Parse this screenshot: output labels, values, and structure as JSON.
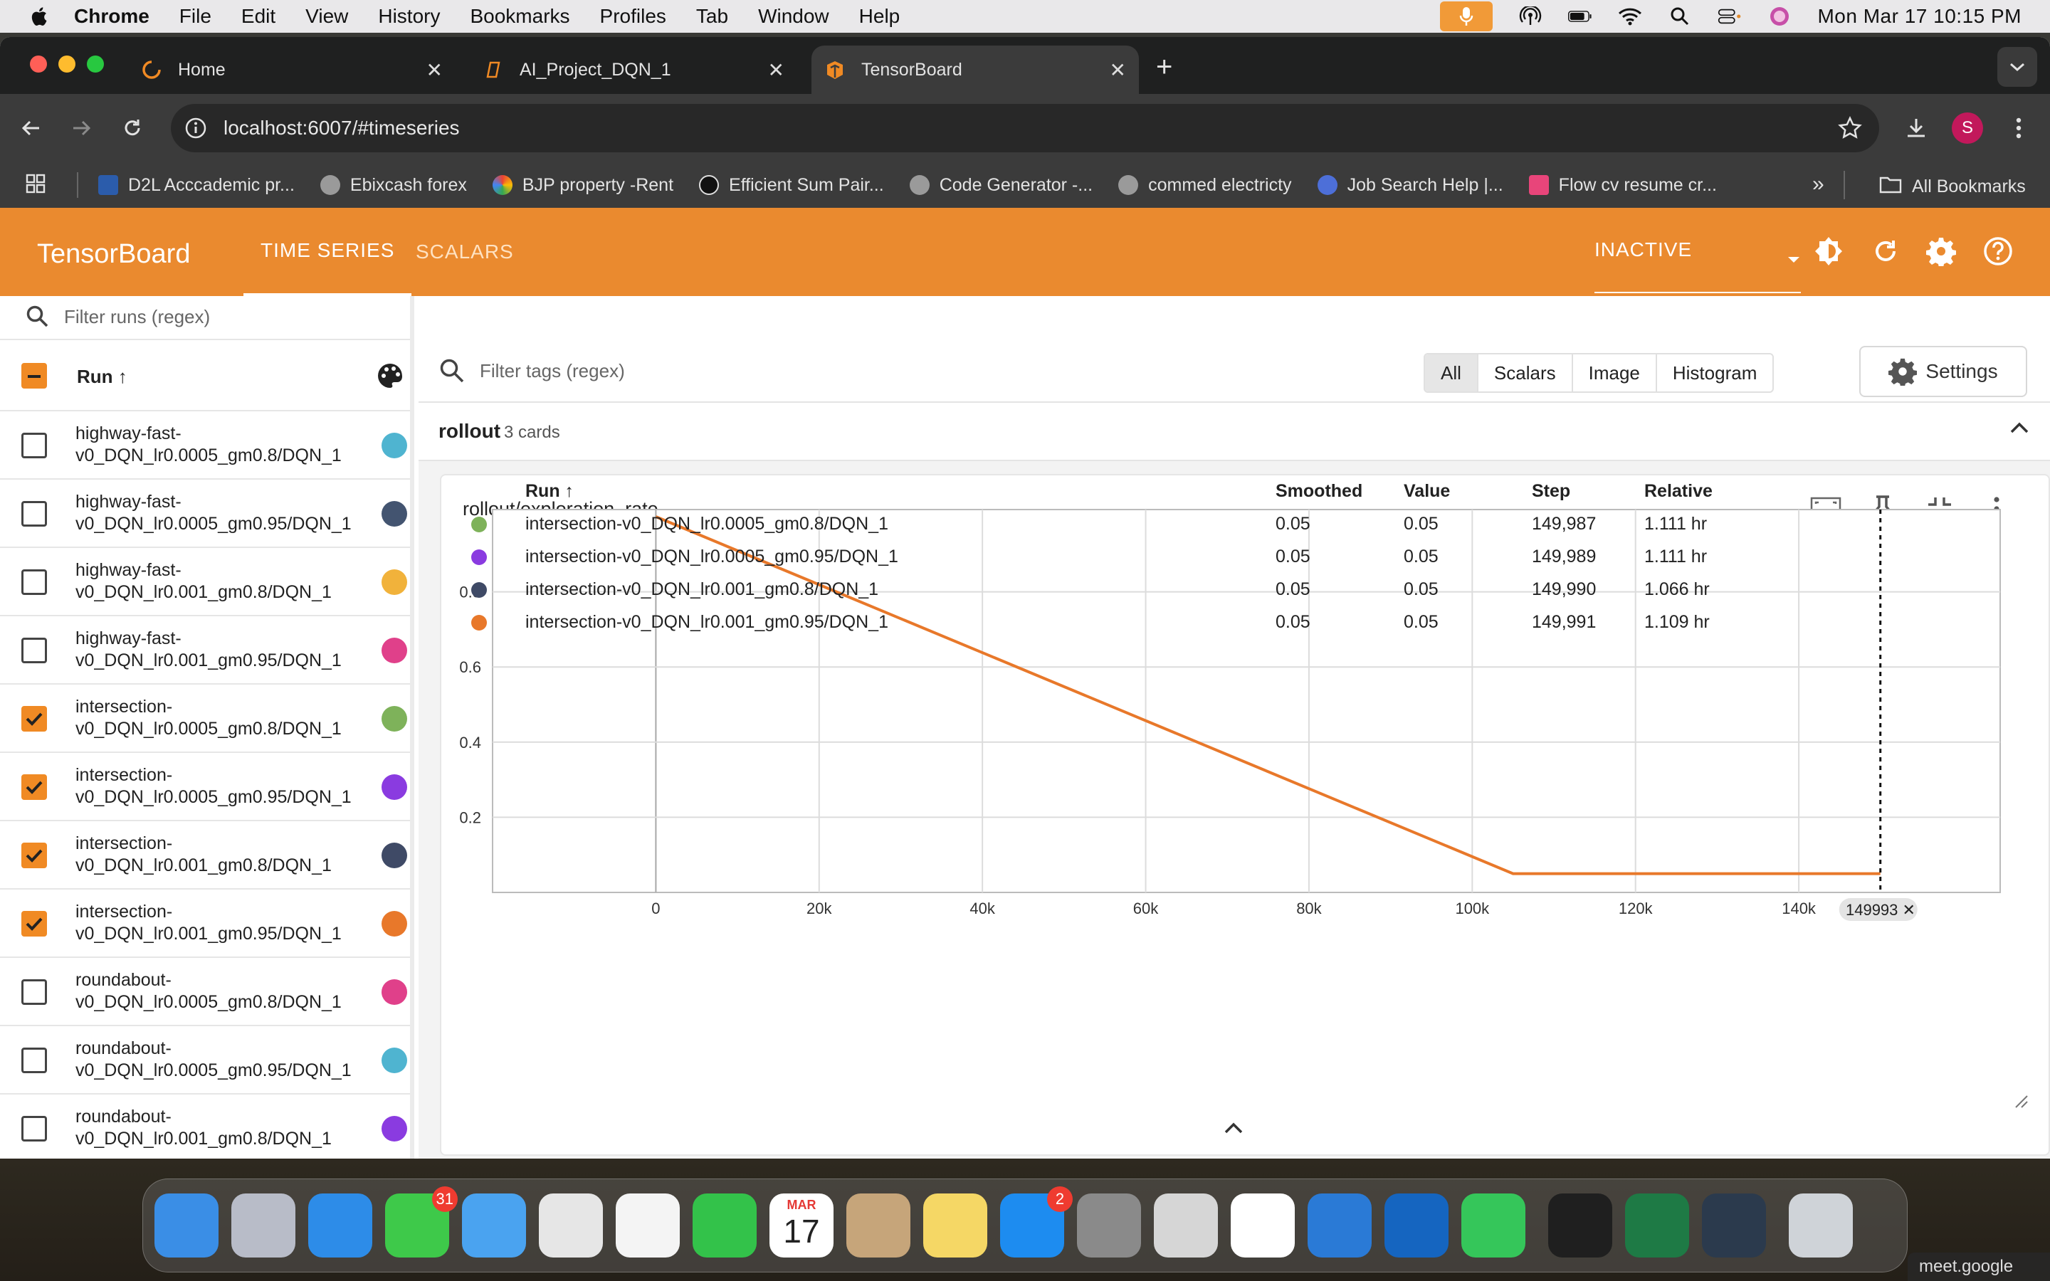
{
  "menubar": {
    "app": "Chrome",
    "items": [
      "File",
      "Edit",
      "View",
      "History",
      "Bookmarks",
      "Profiles",
      "Tab",
      "Window",
      "Help"
    ],
    "clock": "Mon Mar 17  10:15 PM"
  },
  "browser": {
    "tabs": [
      {
        "title": "Home",
        "icon": "home-spinner-icon"
      },
      {
        "title": "AI_Project_DQN_1",
        "icon": "notebook-icon"
      },
      {
        "title": "TensorBoard",
        "icon": "tensorboard-icon"
      }
    ],
    "url": "localhost:6007/#timeseries",
    "profile_initial": "S",
    "bookmarks": [
      "D2L Acccademic pr...",
      "Ebixcash forex",
      "BJP property -Rent",
      "Efficient Sum Pair...",
      "Code Generator -...",
      "commed electricty",
      "Job Search Help |...",
      "Flow cv resume cr..."
    ],
    "all_bookmarks": "All Bookmarks"
  },
  "tensorboard": {
    "logo": "TensorBoard",
    "nav": [
      "TIME SERIES",
      "SCALARS"
    ],
    "status": "INACTIVE"
  },
  "sidebar": {
    "filter_placeholder": "Filter runs (regex)",
    "run_header": "Run ↑",
    "runs": [
      {
        "name": "highway-fast-v0_DQN_lr0.0005_gm0.8/DQN_1",
        "l1": "highway-fast-",
        "l2": "v0_DQN_lr0.0005_gm0.8/DQN_1",
        "checked": false,
        "color": "#4fb4d0"
      },
      {
        "name": "highway-fast-v0_DQN_lr0.0005_gm0.95/DQN_1",
        "l1": "highway-fast-",
        "l2": "v0_DQN_lr0.0005_gm0.95/DQN_1",
        "checked": false,
        "color": "#435470"
      },
      {
        "name": "highway-fast-v0_DQN_lr0.001_gm0.8/DQN_1",
        "l1": "highway-fast-",
        "l2": "v0_DQN_lr0.001_gm0.8/DQN_1",
        "checked": false,
        "color": "#f1b23b"
      },
      {
        "name": "highway-fast-v0_DQN_lr0.001_gm0.95/DQN_1",
        "l1": "highway-fast-",
        "l2": "v0_DQN_lr0.001_gm0.95/DQN_1",
        "checked": false,
        "color": "#e0408a"
      },
      {
        "name": "intersection-v0_DQN_lr0.0005_gm0.8/DQN_1",
        "l1": "intersection-",
        "l2": "v0_DQN_lr0.0005_gm0.8/DQN_1",
        "checked": true,
        "color": "#7eb25a"
      },
      {
        "name": "intersection-v0_DQN_lr0.0005_gm0.95/DQN_1",
        "l1": "intersection-",
        "l2": "v0_DQN_lr0.0005_gm0.95/DQN_1",
        "checked": true,
        "color": "#8a3be0"
      },
      {
        "name": "intersection-v0_DQN_lr0.001_gm0.8/DQN_1",
        "l1": "intersection-",
        "l2": "v0_DQN_lr0.001_gm0.8/DQN_1",
        "checked": true,
        "color": "#3f4a66"
      },
      {
        "name": "intersection-v0_DQN_lr0.001_gm0.95/DQN_1",
        "l1": "intersection-",
        "l2": "v0_DQN_lr0.001_gm0.95/DQN_1",
        "checked": true,
        "color": "#e8782a"
      },
      {
        "name": "roundabout-v0_DQN_lr0.0005_gm0.8/DQN_1",
        "l1": "roundabout-",
        "l2": "v0_DQN_lr0.0005_gm0.8/DQN_1",
        "checked": false,
        "color": "#e0408a"
      },
      {
        "name": "roundabout-v0_DQN_lr0.0005_gm0.95/DQN_1",
        "l1": "roundabout-",
        "l2": "v0_DQN_lr0.0005_gm0.95/DQN_1",
        "checked": false,
        "color": "#4fb4d0"
      },
      {
        "name": "roundabout-v0_DQN_lr0.001_gm0.8/DQN_1",
        "l1": "roundabout-",
        "l2": "v0_DQN_lr0.001_gm0.8/DQN_1",
        "checked": false,
        "color": "#8a3be0"
      }
    ]
  },
  "main": {
    "filter_placeholder": "Filter tags (regex)",
    "type_filters": [
      "All",
      "Scalars",
      "Image",
      "Histogram"
    ],
    "selected_filter": "All",
    "settings_label": "Settings",
    "group": {
      "name": "rollout",
      "count": "3 cards"
    },
    "card_title": "rollout/exploration_rate",
    "step_badge": "149993",
    "table": {
      "headers": [
        "Run ↑",
        "Smoothed",
        "Value",
        "Step",
        "Relative"
      ],
      "rows": [
        {
          "color": "#7eb25a",
          "run": "intersection-v0_DQN_lr0.0005_gm0.8/DQN_1",
          "smoothed": "0.05",
          "value": "0.05",
          "step": "149,987",
          "relative": "1.111 hr"
        },
        {
          "color": "#8a3be0",
          "run": "intersection-v0_DQN_lr0.0005_gm0.95/DQN_1",
          "smoothed": "0.05",
          "value": "0.05",
          "step": "149,989",
          "relative": "1.111 hr"
        },
        {
          "color": "#3f4a66",
          "run": "intersection-v0_DQN_lr0.001_gm0.8/DQN_1",
          "smoothed": "0.05",
          "value": "0.05",
          "step": "149,990",
          "relative": "1.066 hr"
        },
        {
          "color": "#e8782a",
          "run": "intersection-v0_DQN_lr0.001_gm0.95/DQN_1",
          "smoothed": "0.05",
          "value": "0.05",
          "step": "149,991",
          "relative": "1.109 hr"
        }
      ]
    }
  },
  "dock": {
    "apps": [
      "Finder",
      "Launchpad",
      "Safari",
      "Messages",
      "Mail",
      "Maps",
      "Photos",
      "FaceTime",
      "Calendar",
      "Contacts",
      "Notes",
      "App Store",
      "System Settings",
      "iPhone Mirroring",
      "Chrome",
      "VS Code",
      "Outlook",
      "WhatsApp",
      "Terminal",
      "Excel",
      "QuickTime",
      "Trash"
    ],
    "messages_badge": "31",
    "appstore_badge": "2",
    "calendar_month": "MAR",
    "calendar_day": "17"
  },
  "meet_label": "meet.google",
  "chart_data": {
    "type": "line",
    "title": "rollout/exploration_rate",
    "xlim": [
      -20000,
      160000
    ],
    "ylim": [
      0,
      1.0
    ],
    "x_ticks": [
      "0",
      "20k",
      "40k",
      "60k",
      "80k",
      "100k",
      "120k",
      "140k"
    ],
    "y_ticks": [
      "0.2",
      "0.4",
      "0.6",
      "0.8"
    ],
    "series": [
      {
        "color": "#e8782a",
        "x": [
          0,
          105000,
          149993
        ],
        "y": [
          1.0,
          0.05,
          0.05
        ]
      }
    ],
    "cursor_step": 149993,
    "colors": {
      "header": "#ea8a2f",
      "line": "#e8782a"
    }
  }
}
